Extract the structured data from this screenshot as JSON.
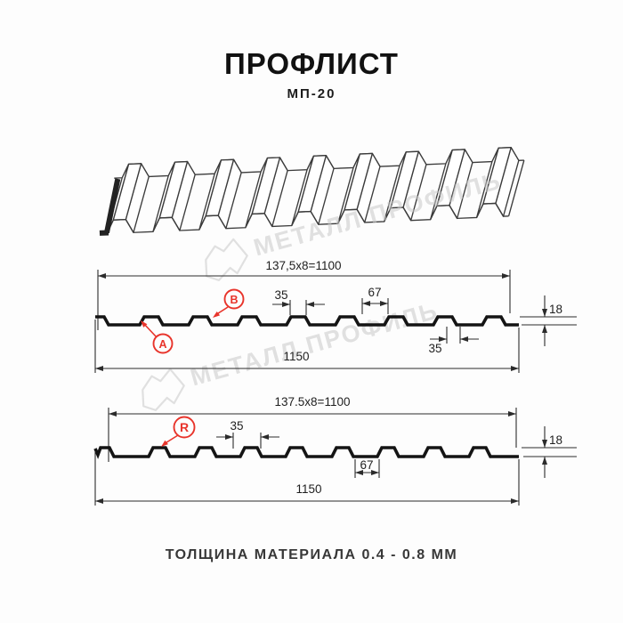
{
  "header": {
    "title": "ПРОФЛИСТ",
    "subtitle": "МП-20"
  },
  "watermark": {
    "text": "МЕТАЛЛ ПРОФИЛЬ"
  },
  "profile_a": {
    "labels": {
      "a": "A",
      "b": "B"
    },
    "dims": {
      "pitch": "137,5x8=1100",
      "crest_width": "35",
      "crest_gap": "67",
      "height": "18",
      "rib_base": "35",
      "overall_width": "1150"
    }
  },
  "profile_r": {
    "labels": {
      "r": "R"
    },
    "dims": {
      "pitch": "137.5x8=1100",
      "crest_width": "35",
      "valley_width": "67",
      "height": "18",
      "overall_width": "1150"
    }
  },
  "footer": {
    "thickness_note": "ТОЛЩИНА МАТЕРИАЛА 0.4 - 0.8 ММ"
  },
  "colors": {
    "accent_red": "#e8342b",
    "profile_line": "#141414",
    "dim_line": "#2b2b2b",
    "watermark": "#c9c9c9"
  }
}
